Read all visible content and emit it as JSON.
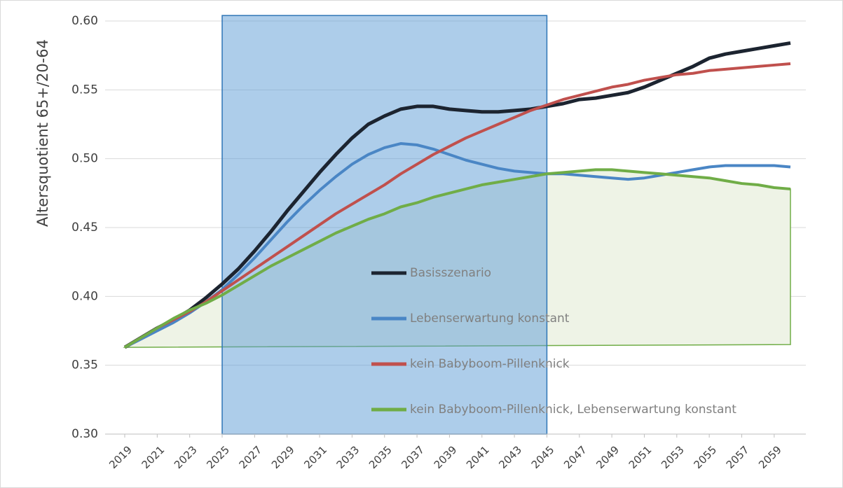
{
  "chart_data": {
    "type": "line",
    "y_label": "Altersquotient 65+/20-64",
    "x": [
      2019,
      2020,
      2021,
      2022,
      2023,
      2024,
      2025,
      2026,
      2027,
      2028,
      2029,
      2030,
      2031,
      2032,
      2033,
      2034,
      2035,
      2036,
      2037,
      2038,
      2039,
      2040,
      2041,
      2042,
      2043,
      2044,
      2045,
      2046,
      2047,
      2048,
      2049,
      2050,
      2051,
      2052,
      2053,
      2054,
      2055,
      2056,
      2057,
      2058,
      2059,
      2060
    ],
    "xlim": [
      2019,
      2060
    ],
    "xticks": [
      2019,
      2021,
      2023,
      2025,
      2027,
      2029,
      2031,
      2033,
      2035,
      2037,
      2039,
      2041,
      2043,
      2045,
      2047,
      2049,
      2051,
      2053,
      2055,
      2057,
      2059
    ],
    "ylim": [
      0.3,
      0.6
    ],
    "yticks": [
      {
        "value": 0.3,
        "label": "0.30"
      },
      {
        "value": 0.35,
        "label": "0.35"
      },
      {
        "value": 0.4,
        "label": "0.40"
      },
      {
        "value": 0.45,
        "label": "0.45"
      },
      {
        "value": 0.5,
        "label": "0.50"
      },
      {
        "value": 0.55,
        "label": "0.55"
      },
      {
        "value": 0.6,
        "label": "0.60"
      }
    ],
    "grid": true,
    "highlight": {
      "x": [
        2025,
        2045
      ],
      "y": [
        0.3,
        0.604
      ],
      "color": "#5b9bd5"
    },
    "series": [
      {
        "name": "Basisszenario",
        "color": "#1c2430",
        "width": 5,
        "values": [
          0.363,
          0.37,
          0.377,
          0.383,
          0.39,
          0.399,
          0.409,
          0.42,
          0.433,
          0.447,
          0.462,
          0.476,
          0.49,
          0.503,
          0.515,
          0.525,
          0.531,
          0.536,
          0.538,
          0.538,
          0.536,
          0.535,
          0.534,
          0.534,
          0.535,
          0.536,
          0.538,
          0.54,
          0.543,
          0.544,
          0.546,
          0.548,
          0.552,
          0.557,
          0.562,
          0.567,
          0.573,
          0.576,
          0.578,
          0.58,
          0.582,
          0.584
        ]
      },
      {
        "name": "Lebenserwartung konstant",
        "color": "#4a86c5",
        "width": 4,
        "values": [
          0.363,
          0.369,
          0.375,
          0.381,
          0.388,
          0.396,
          0.405,
          0.416,
          0.428,
          0.441,
          0.454,
          0.466,
          0.477,
          0.487,
          0.496,
          0.503,
          0.508,
          0.511,
          0.51,
          0.507,
          0.503,
          0.499,
          0.496,
          0.493,
          0.491,
          0.49,
          0.489,
          0.489,
          0.488,
          0.487,
          0.486,
          0.485,
          0.486,
          0.488,
          0.49,
          0.492,
          0.494,
          0.495,
          0.495,
          0.495,
          0.495,
          0.494
        ]
      },
      {
        "name": "kein Babyboom-Pillenknick",
        "color": "#c0504d",
        "width": 4,
        "values": [
          0.363,
          0.37,
          0.377,
          0.383,
          0.389,
          0.396,
          0.404,
          0.412,
          0.42,
          0.428,
          0.436,
          0.444,
          0.452,
          0.46,
          0.467,
          0.474,
          0.481,
          0.489,
          0.496,
          0.503,
          0.509,
          0.515,
          0.52,
          0.525,
          0.53,
          0.535,
          0.539,
          0.543,
          0.546,
          0.549,
          0.552,
          0.554,
          0.557,
          0.559,
          0.561,
          0.562,
          0.564,
          0.565,
          0.566,
          0.567,
          0.568,
          0.569
        ]
      },
      {
        "name": "kein Babyboom-Pillenknick, Lebenserwartung konstant",
        "color": "#70ad47",
        "width": 4,
        "fill": "#eef3e6",
        "area_base": [
          0.363,
          0.365
        ],
        "values": [
          0.363,
          0.37,
          0.377,
          0.384,
          0.39,
          0.395,
          0.401,
          0.408,
          0.415,
          0.422,
          0.428,
          0.434,
          0.44,
          0.446,
          0.451,
          0.456,
          0.46,
          0.465,
          0.468,
          0.472,
          0.475,
          0.478,
          0.481,
          0.483,
          0.485,
          0.487,
          0.489,
          0.49,
          0.491,
          0.492,
          0.492,
          0.491,
          0.49,
          0.489,
          0.488,
          0.487,
          0.486,
          0.484,
          0.482,
          0.481,
          0.479,
          0.478
        ]
      }
    ]
  }
}
